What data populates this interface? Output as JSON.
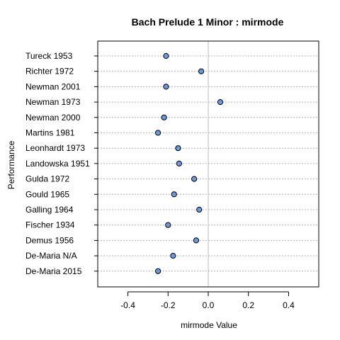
{
  "chart_data": {
    "type": "scatter",
    "title": "Bach Prelude 1 Minor : mirmode",
    "xlabel": "mirmode Value",
    "ylabel": "Performance",
    "xlim": [
      -0.55,
      0.55
    ],
    "x_ticks": [
      "-0.4",
      "-0.2",
      "0.0",
      "0.2",
      "0.4"
    ],
    "x_tick_values": [
      -0.4,
      -0.2,
      0.0,
      0.2,
      0.4
    ],
    "reference_line": 0.0,
    "grid": "horizontal dotted",
    "point_color": "#6e98dc",
    "categories": [
      "Tureck 1953",
      "Richter 1972",
      "Newman 2001",
      "Newman 1973",
      "Newman 2000",
      "Martins 1981",
      "Leonhardt 1973",
      "Landowska 1951",
      "Gulda 1972",
      "Gould 1965",
      "Galling 1964",
      "Fischer 1934",
      "Demus 1956",
      "De-Maria N/A",
      "De-Maria 2015"
    ],
    "values": [
      -0.21,
      -0.035,
      -0.21,
      0.06,
      -0.22,
      -0.25,
      -0.15,
      -0.145,
      -0.07,
      -0.17,
      -0.045,
      -0.2,
      -0.06,
      -0.175,
      -0.25
    ]
  }
}
